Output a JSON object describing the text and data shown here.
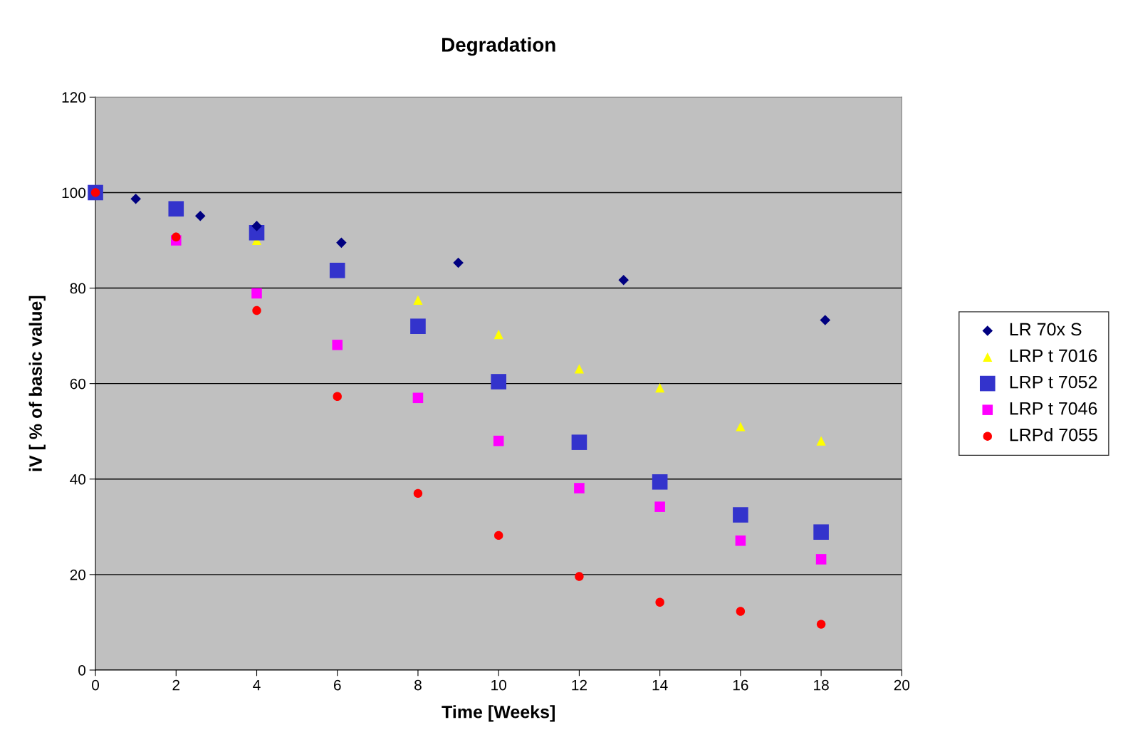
{
  "chart_data": {
    "type": "scatter",
    "title": "Degradation",
    "xlabel": "Time [Weeks]",
    "ylabel": "iV [ % of basic value]",
    "xlim": [
      0,
      20
    ],
    "xticks": [
      0,
      2,
      4,
      6,
      8,
      10,
      12,
      14,
      16,
      18,
      20
    ],
    "ylim": [
      0,
      120
    ],
    "yticks": [
      0,
      20,
      40,
      60,
      80,
      100,
      120
    ],
    "grid": "y",
    "legend": "right",
    "series": [
      {
        "name": "LR 70x S",
        "color": "#000080",
        "marker": "diamond",
        "x": [
          1,
          2.6,
          4,
          6.1,
          9,
          13.1,
          18.1
        ],
        "values": [
          98.7,
          95.1,
          93,
          89.5,
          85.3,
          81.7,
          73.3
        ]
      },
      {
        "name": "LRP t 7016",
        "color": "#ffff00",
        "marker": "triangle",
        "x": [
          4,
          8,
          10,
          12,
          14,
          16,
          18
        ],
        "values": [
          90,
          77.5,
          70.3,
          63.1,
          59.1,
          51,
          48
        ]
      },
      {
        "name": "LRP t 7052",
        "color": "#3333cc",
        "marker": "square",
        "x": [
          0,
          2,
          4,
          6,
          8,
          10,
          12,
          14,
          16,
          18
        ],
        "values": [
          100,
          96.6,
          91.6,
          83.7,
          72,
          60.4,
          47.7,
          39.4,
          32.5,
          28.9
        ]
      },
      {
        "name": "LRP t 7046",
        "color": "#ff00ff",
        "marker": "square",
        "x": [
          2,
          4,
          6,
          8,
          10,
          12,
          14,
          16,
          18
        ],
        "values": [
          90,
          78.9,
          68.1,
          57,
          48,
          38.1,
          34.2,
          27.1,
          23.2
        ]
      },
      {
        "name": "LRPd 7055",
        "color": "#ff0000",
        "marker": "circle",
        "x": [
          0,
          2,
          4,
          6,
          8,
          10,
          12,
          14,
          16,
          18
        ],
        "values": [
          100,
          90.7,
          75.3,
          57.3,
          37,
          28.2,
          19.6,
          14.2,
          12.3,
          9.6
        ]
      }
    ]
  }
}
